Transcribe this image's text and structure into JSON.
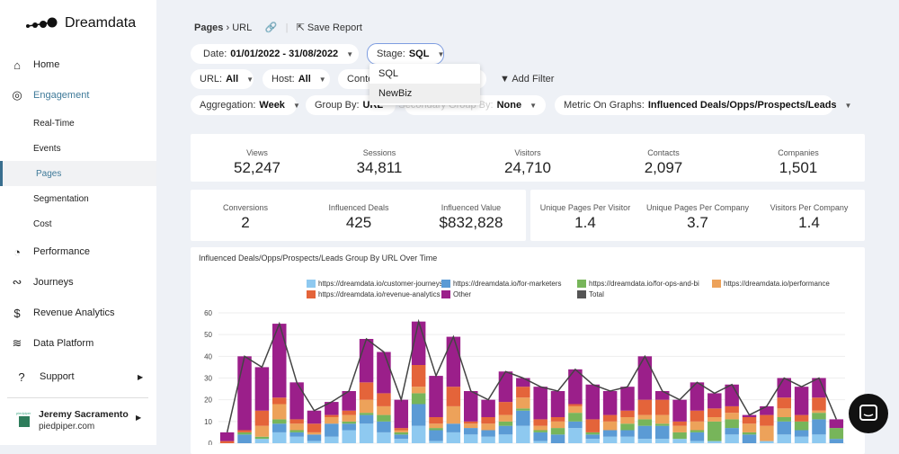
{
  "brand": "Dreamdata",
  "sidebar": {
    "items": [
      {
        "label": "Home",
        "icon": "home-icon"
      },
      {
        "label": "Engagement",
        "icon": "engagement-icon"
      },
      {
        "label": "Real-Time"
      },
      {
        "label": "Events"
      },
      {
        "label": "Pages"
      },
      {
        "label": "Segmentation"
      },
      {
        "label": "Cost"
      },
      {
        "label": "Performance",
        "icon": "gauge-icon"
      },
      {
        "label": "Journeys",
        "icon": "journeys-icon"
      },
      {
        "label": "Revenue Analytics",
        "icon": "revenue-icon"
      },
      {
        "label": "Data Platform",
        "icon": "layers-icon"
      },
      {
        "label": "Support",
        "icon": "help-icon"
      }
    ],
    "active": "Pages",
    "user": {
      "name": "Jeremy Sacramento",
      "company": "piedpiper.com",
      "logo_text": "piedpiper"
    }
  },
  "header": {
    "breadcrumb_parent": "Pages",
    "breadcrumb_child": "URL",
    "save_label": "Save Report"
  },
  "filters": {
    "date": {
      "label": "Date:",
      "value": "01/01/2022 - 31/08/2022"
    },
    "stage": {
      "label": "Stage:",
      "value": "SQL",
      "options": [
        "SQL",
        "NewBiz"
      ]
    },
    "url": {
      "label": "URL:",
      "value": "All"
    },
    "host": {
      "label": "Host:",
      "value": "All"
    },
    "content": {
      "label": "Conte"
    },
    "add_filter": "Add Filter",
    "aggregation": {
      "label": "Aggregation:",
      "value": "Week"
    },
    "group_by": {
      "label": "Group By:",
      "value": "URL"
    },
    "secondary_group_by": {
      "label": "Secondary Group By:",
      "value": "None"
    },
    "metric": {
      "label": "Metric On Graphs:",
      "value": "Influenced Deals/Opps/Prospects/Leads"
    }
  },
  "stats_top": [
    {
      "label": "Views",
      "value": "52,247"
    },
    {
      "label": "Sessions",
      "value": "34,811"
    },
    {
      "label": "Visitors",
      "value": "24,710"
    },
    {
      "label": "Contacts",
      "value": "2,097"
    },
    {
      "label": "Companies",
      "value": "1,501"
    }
  ],
  "stats_left": [
    {
      "label": "Conversions",
      "value": "2"
    },
    {
      "label": "Influenced Deals",
      "value": "425"
    },
    {
      "label": "Influenced Value",
      "value": "$832,828"
    }
  ],
  "stats_right": [
    {
      "label": "Unique Pages Per Visitor",
      "value": "1.4"
    },
    {
      "label": "Unique Pages Per Company",
      "value": "3.7"
    },
    {
      "label": "Visitors Per Company",
      "value": "1.4"
    }
  ],
  "chart_data": {
    "type": "bar",
    "stacked": true,
    "title": "Influenced Deals/Opps/Prospects/Leads Group By URL Over Time",
    "ylim": [
      0,
      60
    ],
    "yticks": [
      "0",
      "10",
      "20",
      "30",
      "40",
      "50",
      "60"
    ],
    "grid": true,
    "legend": "top",
    "series": [
      {
        "name": "https://dreamdata.io/customer-journeys",
        "color": "#8ec9f0",
        "values": [
          0,
          0,
          2,
          5,
          3,
          1,
          3,
          6,
          9,
          5,
          2,
          8,
          1,
          5,
          4,
          3,
          4,
          8,
          1,
          0,
          7,
          2,
          3,
          3,
          2,
          2,
          2,
          1,
          1,
          4,
          0,
          1,
          4,
          3,
          4,
          0
        ]
      },
      {
        "name": "https://dreamdata.io/for-marketers",
        "color": "#5b9bd5",
        "values": [
          0,
          4,
          0,
          4,
          2,
          3,
          6,
          3,
          4,
          5,
          2,
          10,
          5,
          4,
          3,
          3,
          4,
          7,
          4,
          4,
          3,
          2,
          3,
          3,
          6,
          6,
          0,
          4,
          0,
          3,
          4,
          0,
          6,
          3,
          7,
          2
        ]
      },
      {
        "name": "https://dreamdata.io/for-ops-and-bi",
        "color": "#77b55a",
        "values": [
          0,
          1,
          1,
          2,
          1,
          0,
          0,
          1,
          1,
          3,
          1,
          5,
          1,
          0,
          0,
          0,
          2,
          1,
          1,
          3,
          4,
          1,
          0,
          3,
          3,
          1,
          3,
          1,
          9,
          4,
          1,
          0,
          2,
          4,
          3,
          5
        ]
      },
      {
        "name": "https://dreamdata.io/performance",
        "color": "#eda25a",
        "values": [
          0,
          0,
          5,
          7,
          3,
          1,
          3,
          3,
          6,
          4,
          1,
          3,
          2,
          8,
          2,
          3,
          3,
          5,
          2,
          3,
          3,
          0,
          4,
          3,
          2,
          4,
          3,
          4,
          2,
          3,
          4,
          7,
          4,
          0,
          1,
          0
        ]
      },
      {
        "name": "https://dreamdata.io/revenue-analytics",
        "color": "#e4643a",
        "values": [
          1,
          1,
          7,
          3,
          2,
          4,
          1,
          2,
          8,
          6,
          1,
          10,
          3,
          9,
          1,
          3,
          6,
          5,
          3,
          2,
          1,
          6,
          3,
          3,
          7,
          7,
          2,
          5,
          4,
          3,
          3,
          5,
          5,
          3,
          6,
          0
        ]
      },
      {
        "name": "Other",
        "color": "#9b1f8a",
        "values": [
          4,
          34,
          20,
          34,
          17,
          6,
          6,
          9,
          20,
          19,
          13,
          20,
          19,
          23,
          14,
          8,
          14,
          4,
          15,
          12,
          16,
          16,
          11,
          11,
          20,
          4,
          10,
          13,
          7,
          10,
          1,
          4,
          9,
          13,
          9,
          4
        ]
      }
    ],
    "total": {
      "name": "Total",
      "color": "#444444",
      "values": [
        5,
        40,
        35,
        55,
        28,
        15,
        19,
        24,
        48,
        42,
        20,
        56,
        31,
        49,
        24,
        20,
        33,
        30,
        26,
        24,
        34,
        27,
        24,
        26,
        40,
        24,
        20,
        28,
        23,
        27,
        13,
        17,
        30,
        26,
        30,
        11
      ]
    }
  }
}
